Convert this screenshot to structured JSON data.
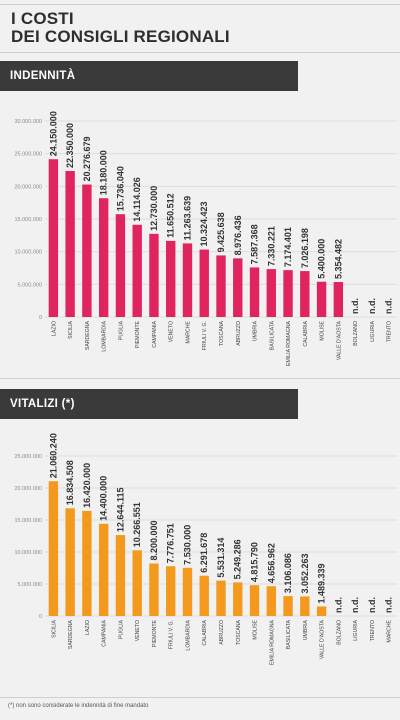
{
  "page": {
    "title_line1": "I COSTI",
    "title_line2": "DEI CONSIGLI REGIONALI",
    "footnote": "(*) non sono considerate le indennità di fine mandato"
  },
  "colors": {
    "indennita_bar": "#e0255e",
    "vitalizi_bar": "#f39a1e",
    "band": "#3a3a3a"
  },
  "chart_data": [
    {
      "type": "bar",
      "title": "INDENNITÀ",
      "ylim": [
        0,
        30000000
      ],
      "yticks": [
        0,
        5000000,
        10000000,
        15000000,
        20000000,
        25000000,
        30000000
      ],
      "ytick_labels": [
        "0",
        "5.000.000",
        "10.000.000",
        "15.000.000",
        "20.000.000",
        "25.000.000",
        "30.000.000"
      ],
      "grid": true,
      "categories": [
        "LAZIO",
        "SICILIA",
        "SARDEGNA",
        "LOMBARDIA",
        "PUGLIA",
        "PIEMONTE",
        "CAMPANIA",
        "VENETO",
        "MARCHE",
        "FRIULI V. G.",
        "TOSCANA",
        "ABRUZZO",
        "UMBRIA",
        "BASILICATA",
        "EMILIA ROMAGNA",
        "CALABRIA",
        "MOLISE",
        "VALLE D'AOSTA",
        "BOLZANO",
        "LIGURIA",
        "TRENTO"
      ],
      "values": [
        24150000,
        22350000,
        20276679,
        18180000,
        15736040,
        14114026,
        12730000,
        11650512,
        11263639,
        10324423,
        9425638,
        8976436,
        7587368,
        7330221,
        7174401,
        7026198,
        5400000,
        5354482,
        null,
        null,
        null
      ],
      "labels": [
        "24.150.000",
        "22.350.000",
        "20.276.679",
        "18.180.000",
        "15.736.040",
        "14.114.026",
        "12.730.000",
        "11.650.512",
        "11.263.639",
        "10.324.423",
        "9.425.638",
        "8.976.436",
        "7.587.368",
        "7.330.221",
        "7.174.401",
        "7.026.198",
        "5.400.000",
        "5.354.482",
        "n.d.",
        "n.d.",
        "n.d."
      ]
    },
    {
      "type": "bar",
      "title": "VITALIZI (*)",
      "ylim": [
        0,
        25000000
      ],
      "yticks": [
        0,
        5000000,
        10000000,
        15000000,
        20000000,
        25000000
      ],
      "ytick_labels": [
        "0",
        "5.000.000",
        "10.000.000",
        "15.000.000",
        "20.000.000",
        "25.000.000"
      ],
      "grid": true,
      "categories": [
        "SICILIA",
        "SARDEGNA",
        "LAZIO",
        "CAMPANIA",
        "PUGLIA",
        "VENETO",
        "PIEMONTE",
        "FRIULI V. G.",
        "LOMBARDIA",
        "CALABRIA",
        "ABRUZZO",
        "TOSCANA",
        "MOLISE",
        "EMILIA ROMAGNA",
        "BASILICATA",
        "UMBRIA",
        "VALLE D'AOSTA",
        "BOLZANO",
        "LIGURIA",
        "TRENTO",
        "MARCHE"
      ],
      "values": [
        21060240,
        16834508,
        16420000,
        14400000,
        12644115,
        10266551,
        8200000,
        7776751,
        7530000,
        6291678,
        5531314,
        5249286,
        4815790,
        4656962,
        3106086,
        3052263,
        1489339,
        null,
        null,
        null,
        null
      ],
      "labels": [
        "21.060.240",
        "16.834.508",
        "16.420.000",
        "14.400.000",
        "12.644.115",
        "10.266.551",
        "8.200.000",
        "7.776.751",
        "7.530.000",
        "6.291.678",
        "5.531.314",
        "5.249.286",
        "4.815.790",
        "4.656.962",
        "3.106.086",
        "3.052.263",
        "1.489.339",
        "n.d.",
        "n.d.",
        "n.d.",
        "n.d."
      ]
    }
  ]
}
